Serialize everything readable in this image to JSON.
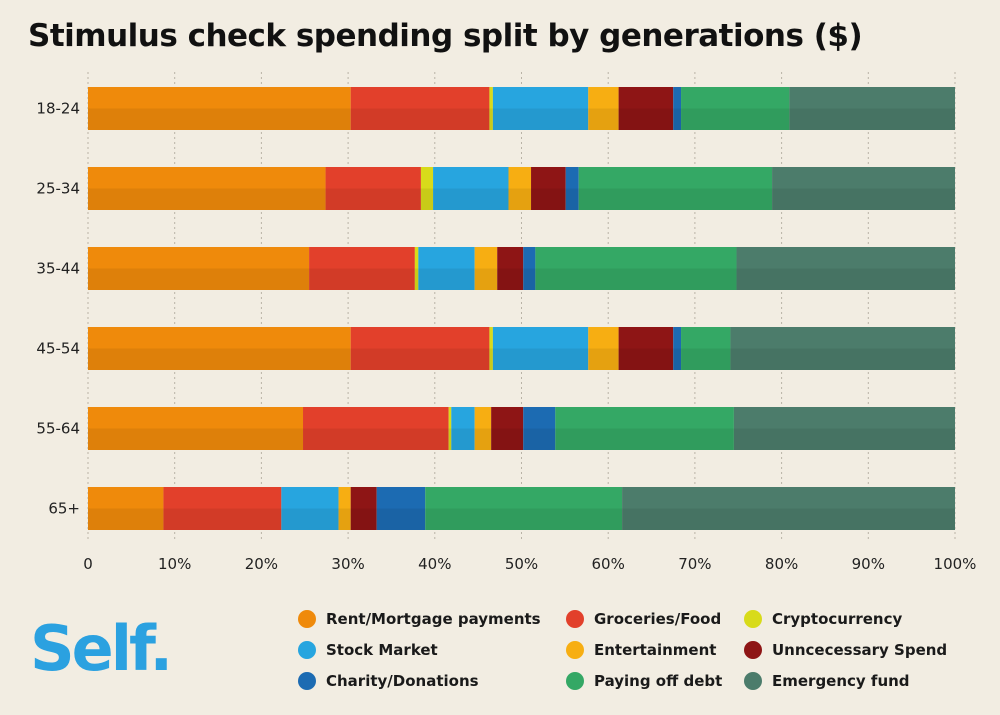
{
  "brand": {
    "logo_text": "Self",
    "logo_dot": ".",
    "logo_color": "#2ba1e0"
  },
  "chart_data": {
    "type": "bar",
    "orientation": "horizontal",
    "stacked": true,
    "title": "Stimulus check spending split by generations ($)",
    "categories": [
      "18-24",
      "25-34",
      "35-44",
      "45-54",
      "55-64",
      "65+"
    ],
    "xlim": [
      0,
      100
    ],
    "x_ticks": [
      "0",
      "10%",
      "20%",
      "30%",
      "40%",
      "50%",
      "60%",
      "70%",
      "80%",
      "90%",
      "100%"
    ],
    "grid": "vertical dotted",
    "legend_position": "bottom",
    "series": [
      {
        "name": "Rent/Mortgage payments",
        "color": "#ef8a0b",
        "values": [
          30.3,
          27.4,
          25.5,
          30.3,
          24.8,
          8.7
        ]
      },
      {
        "name": "Groceries/Food",
        "color": "#e2402b",
        "values": [
          16.0,
          11.0,
          12.2,
          16.0,
          16.8,
          13.6
        ]
      },
      {
        "name": "Cryptocurrency",
        "color": "#d8db1a",
        "values": [
          0.4,
          1.4,
          0.4,
          0.4,
          0.3,
          0.0
        ]
      },
      {
        "name": "Stock Market",
        "color": "#27a5df",
        "values": [
          11.0,
          8.7,
          6.5,
          11.0,
          2.7,
          6.6
        ]
      },
      {
        "name": "Entertainment",
        "color": "#f7ae12",
        "values": [
          3.5,
          2.6,
          2.6,
          3.5,
          1.9,
          1.4
        ]
      },
      {
        "name": "Unncecessary Spend",
        "color": "#8e1515",
        "values": [
          6.3,
          4.0,
          3.0,
          6.3,
          3.7,
          3.0
        ]
      },
      {
        "name": "Charity/Donations",
        "color": "#1c6bb2",
        "values": [
          0.9,
          1.5,
          1.4,
          0.9,
          3.7,
          5.6
        ]
      },
      {
        "name": "Paying off debt",
        "color": "#34a865",
        "values": [
          12.5,
          22.3,
          23.2,
          5.7,
          20.6,
          22.7
        ]
      },
      {
        "name": "Emergency fund",
        "color": "#4c7c6b",
        "values": [
          19.1,
          21.1,
          25.2,
          25.9,
          25.5,
          38.4
        ]
      }
    ]
  }
}
